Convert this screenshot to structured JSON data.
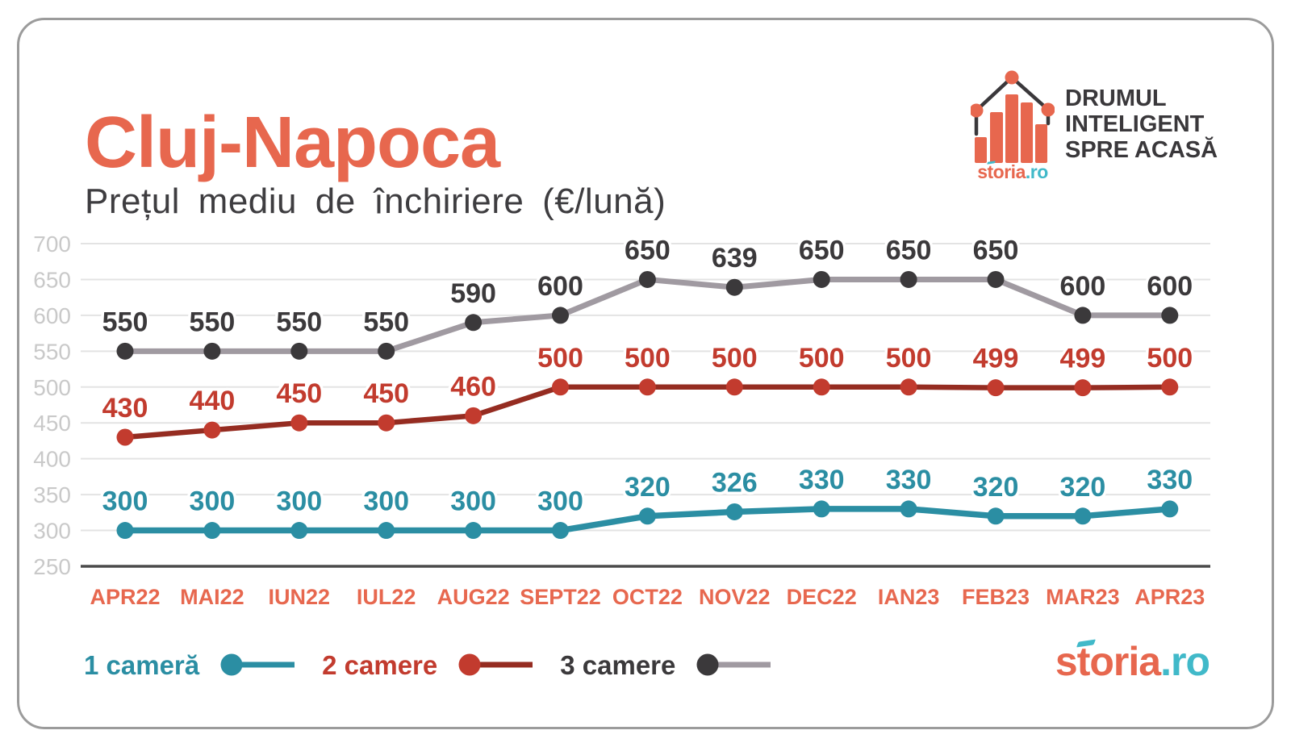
{
  "palette": {
    "coral": "#E7674E",
    "teal_bright": "#41B9C9",
    "dark": "#3B393B",
    "card_border": "#9B9B9B",
    "grid_line": "#E3E3E3",
    "axis_line": "#4B4B4B",
    "y_label": "#C9C9C9",
    "subtitle_color": "#3E3D40",
    "x_label": "#E7684F"
  },
  "header": {
    "title": "Cluj-Napoca",
    "subtitle": "Prețul mediu de închiriere (€/lună)"
  },
  "brand": {
    "tagline": [
      "DRUMUL",
      "INTELIGENT",
      "SPRE ACASĂ"
    ],
    "wordmark_main": "storia",
    "wordmark_tld": ".ro"
  },
  "chart_data": {
    "type": "line",
    "title": "Prețul mediu de închiriere (€/lună)",
    "categories": [
      "APR22",
      "MAI22",
      "IUN22",
      "IUL22",
      "AUG22",
      "SEPT22",
      "OCT22",
      "NOV22",
      "DEC22",
      "IAN23",
      "FEB23",
      "MAR23",
      "APR23"
    ],
    "series": [
      {
        "name": "1 cameră",
        "values": [
          300,
          300,
          300,
          300,
          300,
          300,
          320,
          326,
          330,
          330,
          320,
          320,
          330
        ],
        "dot_color": "#2B8EA3",
        "line_color": "#2B8EA3"
      },
      {
        "name": "2 camere",
        "values": [
          430,
          440,
          450,
          450,
          460,
          500,
          500,
          500,
          500,
          500,
          499,
          499,
          500
        ],
        "dot_color": "#C23B2E",
        "line_color": "#952C21"
      },
      {
        "name": "3 camere",
        "values": [
          550,
          550,
          550,
          550,
          590,
          600,
          650,
          639,
          650,
          650,
          650,
          600,
          600
        ],
        "dot_color": "#3B393B",
        "line_color": "#A09AA1"
      }
    ],
    "y_ticks": [
      700,
      650,
      600,
      550,
      500,
      450,
      400,
      350,
      300,
      250
    ],
    "ylim": [
      250,
      700
    ],
    "grid": true,
    "data_labels": true,
    "legend_position": "bottom-left"
  },
  "footer": {
    "wordmark_main": "storia",
    "wordmark_tld": ".ro"
  }
}
